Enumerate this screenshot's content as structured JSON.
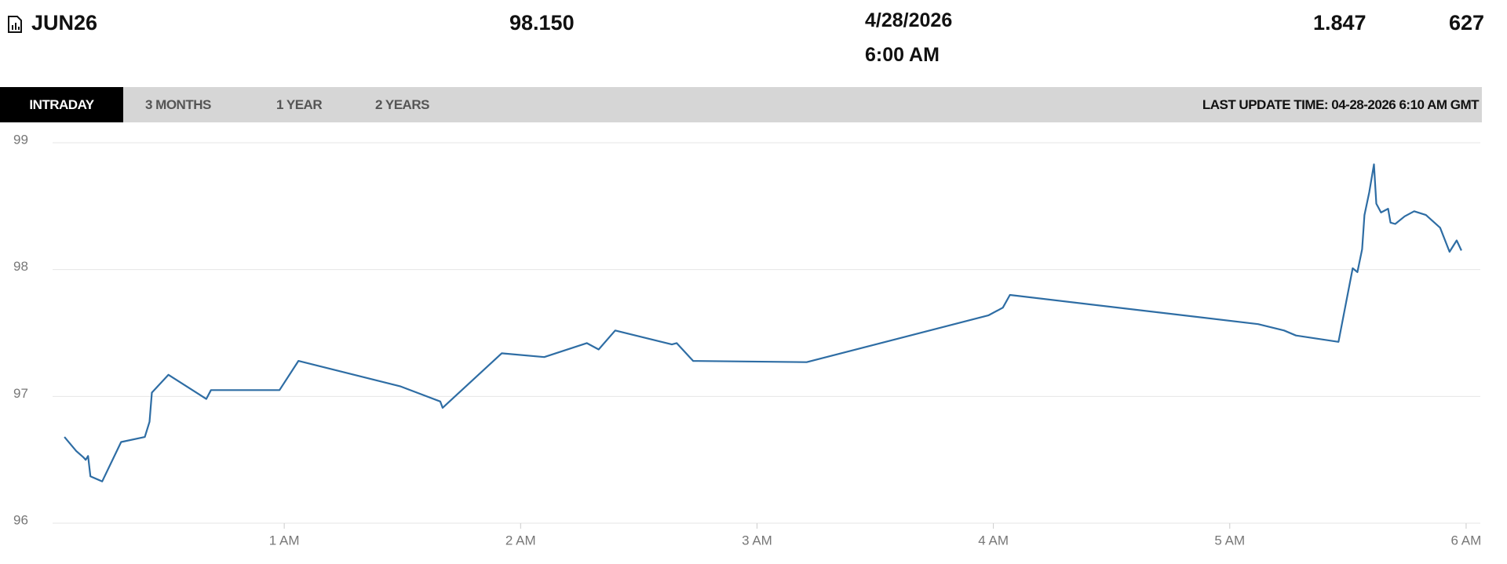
{
  "header": {
    "contract": "JUN26",
    "last": "98.150",
    "date": "4/28/2026",
    "time": "6:00 AM",
    "change": "1.847",
    "volume": "627"
  },
  "tabs": [
    "INTRADAY",
    "3 MONTHS",
    "1 YEAR",
    "2 YEARS"
  ],
  "last_update": "LAST UPDATE TIME: 04-28-2026 6:10 AM GMT",
  "chart_data": {
    "type": "line",
    "color": "#2e6da4",
    "grid": true,
    "x": [
      0.07,
      0.12,
      0.15,
      0.16,
      0.17,
      0.18,
      0.23,
      0.31,
      0.41,
      0.43,
      0.44,
      0.51,
      0.67,
      0.69,
      0.78,
      0.98,
      1.06,
      1.49,
      1.66,
      1.67,
      1.92,
      2.1,
      2.28,
      2.33,
      2.4,
      2.64,
      2.66,
      2.73,
      3.21,
      3.98,
      4.04,
      4.07,
      5.12,
      5.23,
      5.28,
      5.46,
      5.52,
      5.54,
      5.56,
      5.57,
      5.59,
      5.61,
      5.62,
      5.64,
      5.67,
      5.68,
      5.7,
      5.74,
      5.78,
      5.83,
      5.89,
      5.93,
      5.96,
      5.98
    ],
    "values": [
      96.68,
      96.57,
      96.52,
      96.5,
      96.53,
      96.37,
      96.33,
      96.64,
      96.68,
      96.8,
      97.03,
      97.17,
      96.98,
      97.05,
      97.05,
      97.05,
      97.28,
      97.08,
      96.96,
      96.91,
      97.34,
      97.31,
      97.42,
      97.37,
      97.52,
      97.41,
      97.42,
      97.28,
      97.27,
      97.64,
      97.7,
      97.8,
      97.57,
      97.52,
      97.48,
      97.43,
      98.01,
      97.98,
      98.16,
      98.43,
      98.61,
      98.83,
      98.52,
      98.45,
      98.48,
      98.37,
      98.36,
      98.42,
      98.46,
      98.43,
      98.33,
      98.14,
      98.23,
      98.15
    ],
    "xlim": [
      0.02,
      6.06
    ],
    "ylim": [
      96,
      99
    ],
    "xticks": [
      {
        "value": 1,
        "label": "1 AM"
      },
      {
        "value": 2,
        "label": "2 AM"
      },
      {
        "value": 3,
        "label": "3 AM"
      },
      {
        "value": 4,
        "label": "4 AM"
      },
      {
        "value": 5,
        "label": "5 AM"
      },
      {
        "value": 6,
        "label": "6 AM"
      }
    ],
    "yticks": [
      96,
      97,
      98,
      99
    ]
  }
}
